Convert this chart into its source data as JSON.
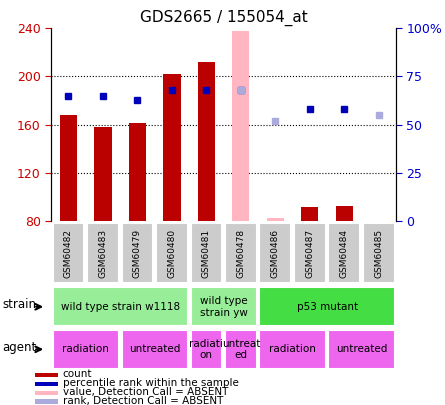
{
  "title": "GDS2665 / 155054_at",
  "samples": [
    "GSM60482",
    "GSM60483",
    "GSM60479",
    "GSM60480",
    "GSM60481",
    "GSM60478",
    "GSM60486",
    "GSM60487",
    "GSM60484",
    "GSM60485"
  ],
  "counts": [
    168,
    158,
    161,
    202,
    212,
    null,
    null,
    91,
    92,
    null
  ],
  "counts_absent": [
    null,
    null,
    null,
    null,
    null,
    238,
    82,
    null,
    null,
    80
  ],
  "ranks": [
    65,
    65,
    63,
    68,
    68,
    68,
    null,
    58,
    58,
    null
  ],
  "ranks_absent": [
    null,
    null,
    null,
    null,
    null,
    68,
    52,
    null,
    null,
    55
  ],
  "bar_bottom": 80,
  "ylim_left": [
    80,
    240
  ],
  "ylim_right": [
    0,
    100
  ],
  "right_ticks": [
    0,
    25,
    50,
    75,
    100
  ],
  "right_tick_labels": [
    "0",
    "25",
    "50",
    "75",
    "100%"
  ],
  "left_ticks": [
    80,
    120,
    160,
    200,
    240
  ],
  "strain_groups": [
    {
      "label": "wild type strain w1118",
      "start": 0,
      "end": 4,
      "color": "#98EE98"
    },
    {
      "label": "wild type\nstrain yw",
      "start": 4,
      "end": 6,
      "color": "#98EE98"
    },
    {
      "label": "p53 mutant",
      "start": 6,
      "end": 10,
      "color": "#44DD44"
    }
  ],
  "agent_groups": [
    {
      "label": "radiation",
      "start": 0,
      "end": 2,
      "color": "#EE66EE"
    },
    {
      "label": "untreated",
      "start": 2,
      "end": 4,
      "color": "#EE66EE"
    },
    {
      "label": "radiati\non",
      "start": 4,
      "end": 5,
      "color": "#EE66EE"
    },
    {
      "label": "untreat\ned",
      "start": 5,
      "end": 6,
      "color": "#EE66EE"
    },
    {
      "label": "radiation",
      "start": 6,
      "end": 8,
      "color": "#EE66EE"
    },
    {
      "label": "untreated",
      "start": 8,
      "end": 10,
      "color": "#EE66EE"
    }
  ],
  "bar_color_present": "#BB0000",
  "bar_color_absent": "#FFB6C1",
  "rank_color_present": "#0000BB",
  "rank_color_absent": "#AAAADD",
  "legend_items": [
    {
      "label": "count",
      "color": "#BB0000"
    },
    {
      "label": "percentile rank within the sample",
      "color": "#0000BB"
    },
    {
      "label": "value, Detection Call = ABSENT",
      "color": "#FFB6C1"
    },
    {
      "label": "rank, Detection Call = ABSENT",
      "color": "#AAAADD"
    }
  ],
  "tick_color_left": "#CC0000",
  "tick_color_right": "#0000CC"
}
